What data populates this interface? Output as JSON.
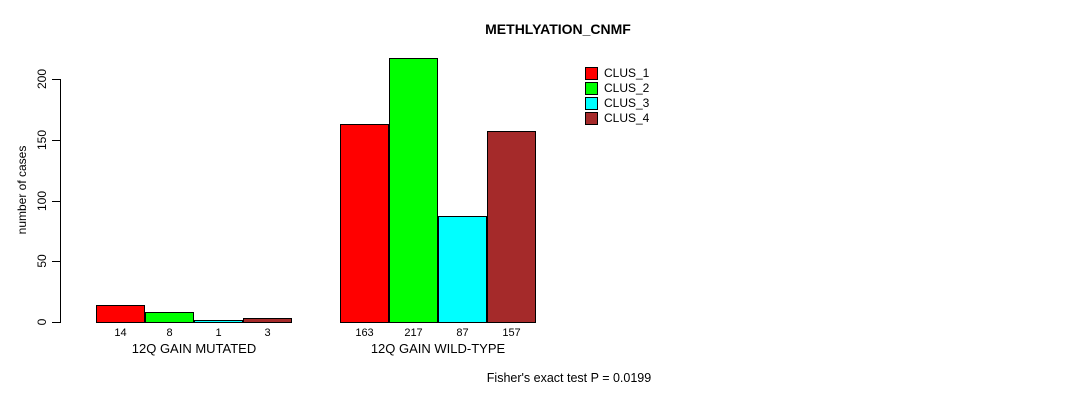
{
  "chart_data": {
    "type": "bar",
    "title": "METHLYATION_CNMF",
    "ylabel": "number of cases",
    "xlabel": "",
    "ylim": [
      0,
      220
    ],
    "yticks": [
      0,
      50,
      100,
      150,
      200
    ],
    "grid": false,
    "legend_position": "top-right",
    "categories": [
      "12Q GAIN MUTATED",
      "12Q GAIN WILD-TYPE"
    ],
    "series": [
      {
        "name": "CLUS_1",
        "color": "#FF0000",
        "values": [
          14,
          163
        ]
      },
      {
        "name": "CLUS_2",
        "color": "#00FF00",
        "values": [
          8,
          217
        ]
      },
      {
        "name": "CLUS_3",
        "color": "#00FFFF",
        "values": [
          1,
          87
        ]
      },
      {
        "name": "CLUS_4",
        "color": "#A52A2A",
        "values": [
          3,
          157
        ]
      }
    ],
    "groups": [
      {
        "label": "12Q GAIN MUTATED",
        "values": [
          14,
          8,
          1,
          3
        ]
      },
      {
        "label": "12Q GAIN WILD-TYPE",
        "values": [
          163,
          217,
          87,
          157
        ]
      }
    ],
    "bar_labels_shown": true,
    "annotation": "Fisher's exact test P = 0.0199"
  },
  "colors": {
    "background": "#FFFFFF",
    "axis": "#000000",
    "text": "#000000"
  }
}
